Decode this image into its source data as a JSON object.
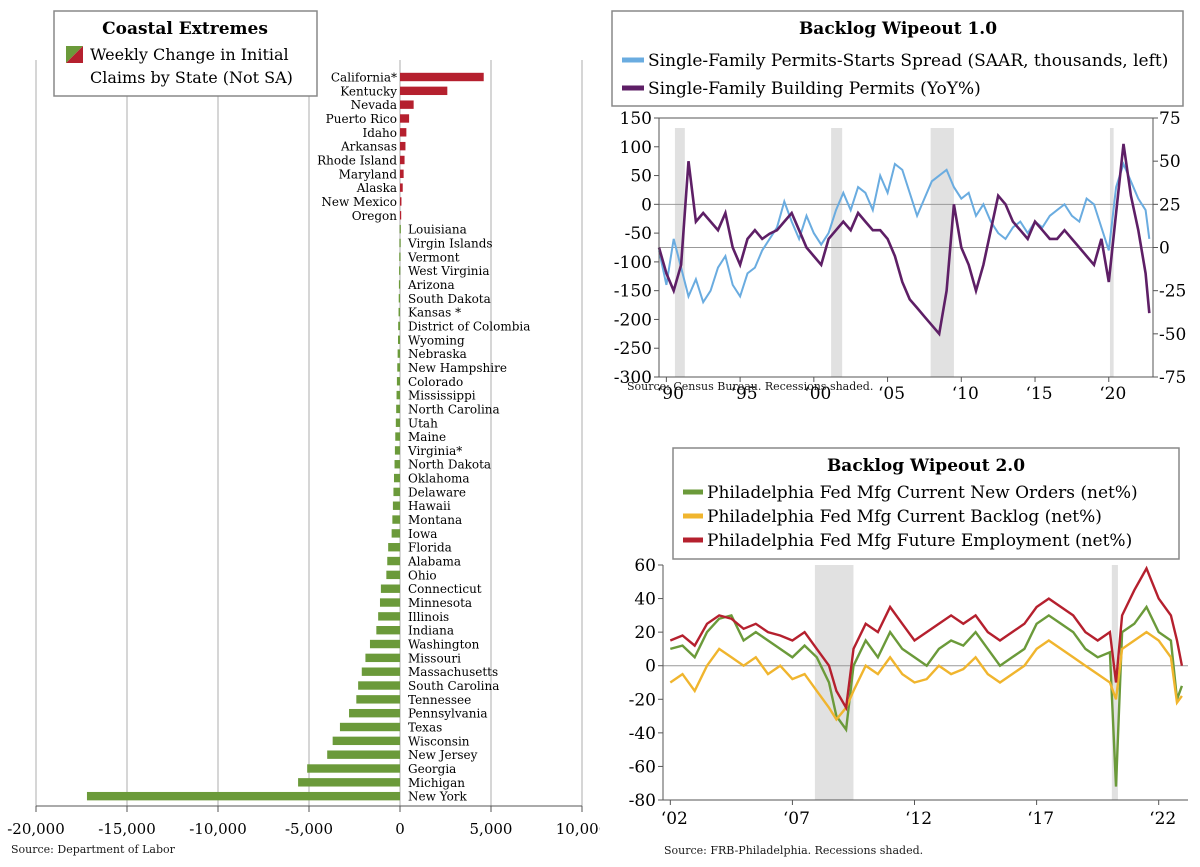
{
  "chart_data": [
    {
      "type": "bar",
      "orientation": "horizontal",
      "title": "Coastal Extremes",
      "legend_label": "Weekly Change in Initial Claims by State (Not SA)",
      "legend_swatch_colors": [
        "#6b9a3a",
        "#b5202e"
      ],
      "positive_color": "#b5202e",
      "negative_color": "#6b9a3a",
      "xlim": [
        -20000,
        10000
      ],
      "xticks": [
        -20000,
        -15000,
        -10000,
        -5000,
        0,
        5000,
        10000
      ],
      "xtick_labels": [
        "-20,000",
        "-15,000",
        "-10,000",
        "-5,000",
        "0",
        "5,000",
        "10,000"
      ],
      "grid": "vertical",
      "categories": [
        "California*",
        "Kentucky",
        "Nevada",
        "Puerto Rico",
        "Idaho",
        "Arkansas",
        "Rhode Island",
        "Maryland",
        "Alaska",
        "New Mexico",
        "Oregon",
        "Louisiana",
        "Virgin Islands",
        "Vermont",
        "West Virginia",
        "Arizona",
        "South Dakota",
        "Kansas *",
        "District of Colombia",
        "Wyoming",
        "Nebraska",
        "New Hampshire",
        "Colorado",
        "Mississippi",
        "North Carolina",
        "Utah",
        "Maine",
        "Virginia*",
        "North Dakota",
        "Oklahoma",
        "Delaware",
        "Hawaii",
        "Montana",
        "Iowa",
        "Florida",
        "Alabama",
        "Ohio",
        "Connecticut",
        "Minnesota",
        "Illinois",
        "Indiana",
        "Washington",
        "Missouri",
        "Massachusetts",
        "South Carolina",
        "Tennessee",
        "Pennsylvania",
        "Texas",
        "Wisconsin",
        "New Jersey",
        "Georgia",
        "Michigan",
        "New York"
      ],
      "values": [
        4600,
        2600,
        750,
        500,
        350,
        300,
        250,
        200,
        150,
        80,
        40,
        -20,
        -30,
        -40,
        -50,
        -60,
        -70,
        -80,
        -100,
        -110,
        -130,
        -150,
        -170,
        -190,
        -210,
        -230,
        -260,
        -280,
        -300,
        -330,
        -360,
        -390,
        -420,
        -460,
        -650,
        -700,
        -750,
        -1050,
        -1100,
        -1200,
        -1300,
        -1650,
        -1900,
        -2100,
        -2300,
        -2400,
        -2800,
        -3300,
        -3700,
        -4000,
        -5100,
        -5600,
        -17200
      ],
      "source": "Source: Department of Labor"
    },
    {
      "type": "line",
      "title": "Backlog Wipeout 1.0",
      "series": [
        {
          "name": "Single-Family Permits-Starts Spread (SAAR, thousands, left)",
          "color": "#6aace0",
          "axis": "left",
          "x": [
            1989.5,
            1990.0,
            1990.5,
            1991.0,
            1991.5,
            1992.0,
            1992.5,
            1993.0,
            1993.5,
            1994.0,
            1994.5,
            1995.0,
            1995.5,
            1996.0,
            1996.5,
            1997.0,
            1997.5,
            1998.0,
            1998.5,
            1999.0,
            1999.5,
            2000.0,
            2000.5,
            2001.0,
            2001.5,
            2002.0,
            2002.5,
            2003.0,
            2003.5,
            2004.0,
            2004.5,
            2005.0,
            2005.5,
            2006.0,
            2006.5,
            2007.0,
            2007.5,
            2008.0,
            2008.5,
            2009.0,
            2009.5,
            2010.0,
            2010.5,
            2011.0,
            2011.5,
            2012.0,
            2012.5,
            2013.0,
            2013.5,
            2014.0,
            2014.5,
            2015.0,
            2015.5,
            2016.0,
            2016.5,
            2017.0,
            2017.5,
            2018.0,
            2018.5,
            2019.0,
            2019.5,
            2020.0,
            2020.5,
            2021.0,
            2021.5,
            2022.0,
            2022.5,
            2022.75
          ],
          "y": [
            -80,
            -140,
            -60,
            -110,
            -160,
            -130,
            -170,
            -150,
            -110,
            -90,
            -140,
            -160,
            -120,
            -110,
            -80,
            -60,
            -40,
            5,
            -30,
            -60,
            -20,
            -50,
            -70,
            -50,
            -10,
            20,
            -10,
            30,
            20,
            -10,
            50,
            20,
            70,
            60,
            20,
            -20,
            10,
            40,
            50,
            60,
            30,
            10,
            20,
            -20,
            0,
            -30,
            -50,
            -60,
            -40,
            -30,
            -50,
            -30,
            -40,
            -20,
            -10,
            0,
            -20,
            -30,
            10,
            0,
            -40,
            -80,
            30,
            70,
            40,
            10,
            -10,
            -60
          ]
        },
        {
          "name": "Single-Family Building Permits (YoY%)",
          "color": "#5e1f66",
          "axis": "right",
          "x": [
            1989.5,
            1990.0,
            1990.5,
            1991.0,
            1991.5,
            1992.0,
            1992.5,
            1993.0,
            1993.5,
            1994.0,
            1994.5,
            1995.0,
            1995.5,
            1996.0,
            1996.5,
            1997.0,
            1997.5,
            1998.0,
            1998.5,
            1999.0,
            1999.5,
            2000.0,
            2000.5,
            2001.0,
            2001.5,
            2002.0,
            2002.5,
            2003.0,
            2003.5,
            2004.0,
            2004.5,
            2005.0,
            2005.5,
            2006.0,
            2006.5,
            2007.0,
            2007.5,
            2008.0,
            2008.5,
            2009.0,
            2009.5,
            2010.0,
            2010.5,
            2011.0,
            2011.5,
            2012.0,
            2012.5,
            2013.0,
            2013.5,
            2014.0,
            2014.5,
            2015.0,
            2015.5,
            2016.0,
            2016.5,
            2017.0,
            2017.5,
            2018.0,
            2018.5,
            2019.0,
            2019.5,
            2020.0,
            2020.5,
            2021.0,
            2021.5,
            2022.0,
            2022.5,
            2022.75
          ],
          "y": [
            0,
            -15,
            -25,
            -10,
            50,
            15,
            20,
            15,
            10,
            20,
            0,
            -10,
            5,
            10,
            5,
            8,
            10,
            15,
            20,
            10,
            0,
            -5,
            -10,
            5,
            10,
            15,
            10,
            20,
            15,
            10,
            10,
            5,
            -5,
            -20,
            -30,
            -35,
            -40,
            -45,
            -50,
            -25,
            25,
            0,
            -10,
            -25,
            -10,
            10,
            30,
            25,
            15,
            10,
            5,
            15,
            10,
            5,
            5,
            10,
            5,
            0,
            -5,
            -10,
            5,
            -20,
            20,
            60,
            30,
            10,
            -15,
            -38
          ]
        }
      ],
      "x_tick_labels": [
        "‘90",
        "‘95",
        "‘00",
        "‘05",
        "‘10",
        "‘15",
        "‘20"
      ],
      "x_tick_values": [
        1990,
        1995,
        2000,
        2005,
        2010,
        2015,
        2020
      ],
      "xlim": [
        1989.5,
        2023.0
      ],
      "ylim_left": [
        -300,
        150
      ],
      "yticks_left": [
        -300,
        -250,
        -200,
        -150,
        -100,
        -50,
        0,
        50,
        100,
        150
      ],
      "ylim_right": [
        -75,
        75
      ],
      "yticks_right": [
        -75,
        -50,
        -25,
        0,
        25,
        50,
        75
      ],
      "recessions": [
        [
          1990.58,
          1991.25
        ],
        [
          2001.17,
          2001.92
        ],
        [
          2007.92,
          2009.5
        ],
        [
          2020.08,
          2020.33
        ]
      ],
      "source": "Source: Census Bureau. Recessions shaded."
    },
    {
      "type": "line",
      "title": "Backlog Wipeout 2.0",
      "series": [
        {
          "name": "Philadelphia Fed Mfg Current New Orders (net%)",
          "color": "#6b9a3a",
          "x": [
            2002.0,
            2002.5,
            2003.0,
            2003.5,
            2004.0,
            2004.5,
            2005.0,
            2005.5,
            2006.0,
            2006.5,
            2007.0,
            2007.5,
            2008.0,
            2008.5,
            2008.8,
            2009.2,
            2009.5,
            2010.0,
            2010.5,
            2011.0,
            2011.5,
            2012.0,
            2012.5,
            2013.0,
            2013.5,
            2014.0,
            2014.5,
            2015.0,
            2015.5,
            2016.0,
            2016.5,
            2017.0,
            2017.5,
            2018.0,
            2018.5,
            2019.0,
            2019.5,
            2020.0,
            2020.25,
            2020.5,
            2021.0,
            2021.5,
            2022.0,
            2022.5,
            2022.75,
            2022.95
          ],
          "y": [
            10,
            12,
            5,
            20,
            28,
            30,
            15,
            20,
            15,
            10,
            5,
            12,
            5,
            -10,
            -30,
            -38,
            0,
            15,
            5,
            20,
            10,
            5,
            0,
            10,
            15,
            12,
            20,
            10,
            0,
            5,
            10,
            25,
            30,
            25,
            20,
            10,
            5,
            8,
            -72,
            20,
            25,
            35,
            20,
            15,
            -20,
            -12
          ]
        },
        {
          "name": "Philadelphia Fed Mfg Current Backlog (net%)",
          "color": "#f0b52e",
          "x": [
            2002.0,
            2002.5,
            2003.0,
            2003.5,
            2004.0,
            2004.5,
            2005.0,
            2005.5,
            2006.0,
            2006.5,
            2007.0,
            2007.5,
            2008.0,
            2008.5,
            2008.8,
            2009.2,
            2009.5,
            2010.0,
            2010.5,
            2011.0,
            2011.5,
            2012.0,
            2012.5,
            2013.0,
            2013.5,
            2014.0,
            2014.5,
            2015.0,
            2015.5,
            2016.0,
            2016.5,
            2017.0,
            2017.5,
            2018.0,
            2018.5,
            2019.0,
            2019.5,
            2020.0,
            2020.25,
            2020.5,
            2021.0,
            2021.5,
            2022.0,
            2022.5,
            2022.75,
            2022.95
          ],
          "y": [
            -10,
            -5,
            -15,
            0,
            10,
            5,
            0,
            5,
            -5,
            0,
            -8,
            -5,
            -15,
            -25,
            -32,
            -25,
            -15,
            0,
            -5,
            5,
            -5,
            -10,
            -8,
            0,
            -5,
            -2,
            5,
            -5,
            -10,
            -5,
            0,
            10,
            15,
            10,
            5,
            0,
            -5,
            -10,
            -20,
            10,
            15,
            20,
            15,
            5,
            -22,
            -18
          ]
        },
        {
          "name": "Philadelphia Fed Mfg Future Employment (net%)",
          "color": "#b5202e",
          "x": [
            2002.0,
            2002.5,
            2003.0,
            2003.5,
            2004.0,
            2004.5,
            2005.0,
            2005.5,
            2006.0,
            2006.5,
            2007.0,
            2007.5,
            2008.0,
            2008.5,
            2008.8,
            2009.2,
            2009.5,
            2010.0,
            2010.5,
            2011.0,
            2011.5,
            2012.0,
            2012.5,
            2013.0,
            2013.5,
            2014.0,
            2014.5,
            2015.0,
            2015.5,
            2016.0,
            2016.5,
            2017.0,
            2017.5,
            2018.0,
            2018.5,
            2019.0,
            2019.5,
            2020.0,
            2020.25,
            2020.5,
            2021.0,
            2021.5,
            2022.0,
            2022.5,
            2022.75,
            2022.95
          ],
          "y": [
            15,
            18,
            12,
            25,
            30,
            28,
            22,
            25,
            20,
            18,
            15,
            20,
            10,
            0,
            -15,
            -25,
            10,
            25,
            20,
            35,
            25,
            15,
            20,
            25,
            30,
            25,
            30,
            20,
            15,
            20,
            25,
            35,
            40,
            35,
            30,
            20,
            15,
            20,
            -10,
            30,
            45,
            58,
            40,
            30,
            15,
            0
          ]
        }
      ],
      "x_tick_labels": [
        "‘02",
        "‘07",
        "‘12",
        "‘17",
        "‘22"
      ],
      "x_tick_values": [
        2002,
        2007,
        2012,
        2017,
        2022
      ],
      "xlim": [
        2001.7,
        2023.2
      ],
      "ylim": [
        -80,
        60
      ],
      "yticks": [
        -80,
        -60,
        -40,
        -20,
        0,
        20,
        40,
        60
      ],
      "recessions": [
        [
          2007.92,
          2009.5
        ],
        [
          2020.08,
          2020.33
        ]
      ],
      "source": "Source: FRB-Philadelphia. Recessions shaded."
    }
  ]
}
